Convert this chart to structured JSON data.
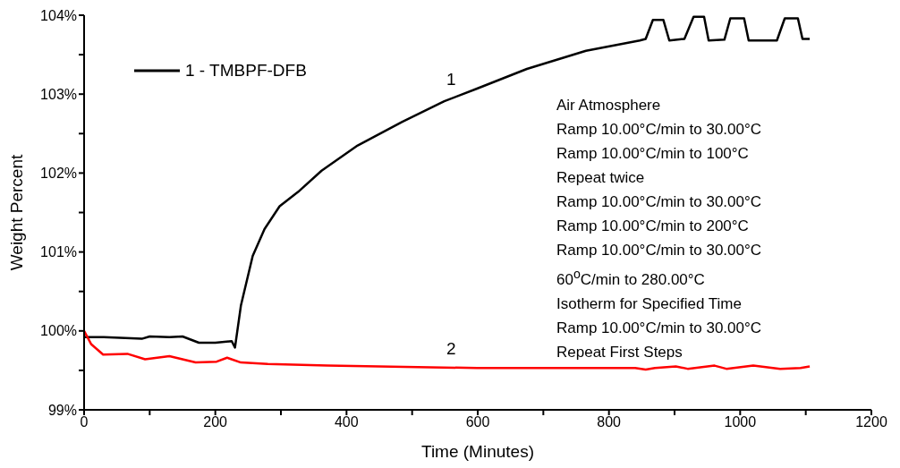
{
  "chart_data": {
    "type": "line",
    "xlabel": "Time (Minutes)",
    "ylabel": "Weight Percent",
    "xlim": [
      0,
      1200
    ],
    "xticks": [
      0,
      {
        "value": 100,
        "label": null
      },
      200,
      {
        "value": 300,
        "label": null
      },
      400,
      {
        "value": 500,
        "label": null
      },
      600,
      {
        "value": 700,
        "label": null
      },
      800,
      {
        "value": 900,
        "label": null
      },
      1000,
      {
        "value": 1100,
        "label": null
      },
      1200
    ],
    "ylim": [
      99,
      104
    ],
    "yticks": [
      {
        "value": 99,
        "label": "99%"
      },
      {
        "value": 99.5,
        "label": null
      },
      {
        "value": 100,
        "label": "100%"
      },
      {
        "value": 100.5,
        "label": null
      },
      {
        "value": 101,
        "label": "101%"
      },
      {
        "value": 101.5,
        "label": null
      },
      {
        "value": 102,
        "label": "102%"
      },
      {
        "value": 102.5,
        "label": null
      },
      {
        "value": 103,
        "label": "103%"
      },
      {
        "value": 103.5,
        "label": null
      },
      {
        "value": 104,
        "label": "104%"
      }
    ],
    "grid": false,
    "legend": "top left",
    "marker": "none",
    "line_style": "solid",
    "series": [
      {
        "name": "1 - TMBPF-DFB",
        "color": "#000000",
        "x": [
          0,
          30,
          88,
          100,
          130,
          150,
          175,
          200,
          225,
          230,
          239,
          257,
          275,
          298,
          326,
          362,
          417,
          485,
          549,
          599,
          675,
          765,
          847,
          856,
          867,
          883,
          892,
          915,
          929,
          945,
          952,
          976,
          985,
          1006,
          1013,
          1056,
          1068,
          1088,
          1095,
          1106
        ],
        "values": [
          99.92,
          99.92,
          99.9,
          99.93,
          99.92,
          99.93,
          99.85,
          99.85,
          99.87,
          99.79,
          100.32,
          100.95,
          101.29,
          101.58,
          101.76,
          102.03,
          102.35,
          102.65,
          102.91,
          103.07,
          103.32,
          103.55,
          103.68,
          103.7,
          103.94,
          103.94,
          103.68,
          103.7,
          103.98,
          103.98,
          103.68,
          103.69,
          103.96,
          103.96,
          103.68,
          103.68,
          103.96,
          103.96,
          103.7,
          103.7
        ]
      },
      {
        "color": "#ff0000",
        "x": [
          0,
          11,
          29,
          66,
          93,
          130,
          170,
          202,
          218,
          239,
          280,
          371,
          599,
          840,
          856,
          870,
          902,
          920,
          961,
          979,
          1020,
          1061,
          1092,
          1106
        ],
        "values": [
          100,
          99.83,
          99.7,
          99.71,
          99.64,
          99.68,
          99.6,
          99.61,
          99.66,
          99.6,
          99.58,
          99.56,
          99.53,
          99.53,
          99.51,
          99.53,
          99.55,
          99.52,
          99.56,
          99.52,
          99.56,
          99.52,
          99.53,
          99.55
        ]
      }
    ],
    "annotations": [
      "1",
      "2",
      "Air Atmosphere",
      "Ramp 10.00°C/min to 30.00°C",
      "Ramp 10.00°C/min to 100°C",
      "Repeat twice",
      "Ramp 10.00°C/min to 30.00°C",
      "Ramp 10.00°C/min to 200°C",
      "Ramp 10.00°C/min to 30.00°C",
      "60$^{o}$C/min to 280.00°C",
      "Isotherm for Specified Time",
      "Ramp 10.00°C/min to 30.00°C",
      "Repeat First Steps"
    ]
  }
}
